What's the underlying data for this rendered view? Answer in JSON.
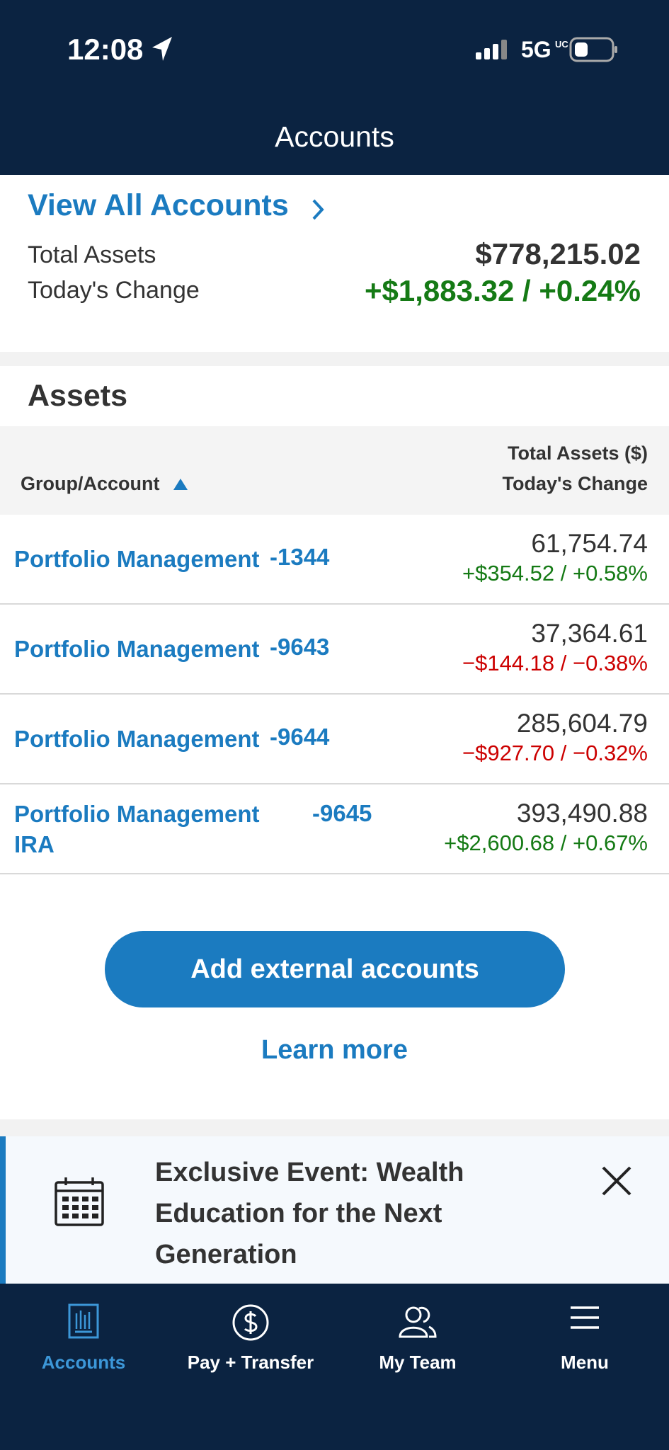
{
  "status": {
    "time": "12:08",
    "network": "5G",
    "network_sup": "UC"
  },
  "header": {
    "title": "Accounts"
  },
  "summary": {
    "link": "View All Accounts",
    "total_label": "Total Assets",
    "total_value": "$778,215.02",
    "change_label": "Today's Change",
    "change_value": "+$1,883.32 / +0.24%"
  },
  "assets": {
    "heading": "Assets",
    "col_left": "Group/Account",
    "col_right_1": "Total Assets ($)",
    "col_right_2": "Today's Change",
    "rows": [
      {
        "name": "Portfolio Management",
        "account": "-1344",
        "value": "61,754.74",
        "change": "+$354.52 / +0.58%",
        "direction": "up"
      },
      {
        "name": "Portfolio Management",
        "account": "-9643",
        "value": "37,364.61",
        "change": "−$144.18 / −0.38%",
        "direction": "down"
      },
      {
        "name": "Portfolio Management",
        "account": "-9644",
        "value": "285,604.79",
        "change": "−$927.70 / −0.32%",
        "direction": "down"
      },
      {
        "name": "Portfolio Management IRA",
        "account": "-9645",
        "value": "393,490.88",
        "change": "+$2,600.68 / +0.67%",
        "direction": "up"
      }
    ]
  },
  "actions": {
    "button": "Add external accounts",
    "link": "Learn more"
  },
  "banner": {
    "text": "Exclusive Event: Wealth Education for the Next Generation"
  },
  "nav": [
    {
      "label": "Accounts",
      "active": true
    },
    {
      "label": "Pay + Transfer",
      "active": false
    },
    {
      "label": "My Team",
      "active": false
    },
    {
      "label": "Menu",
      "active": false
    }
  ]
}
